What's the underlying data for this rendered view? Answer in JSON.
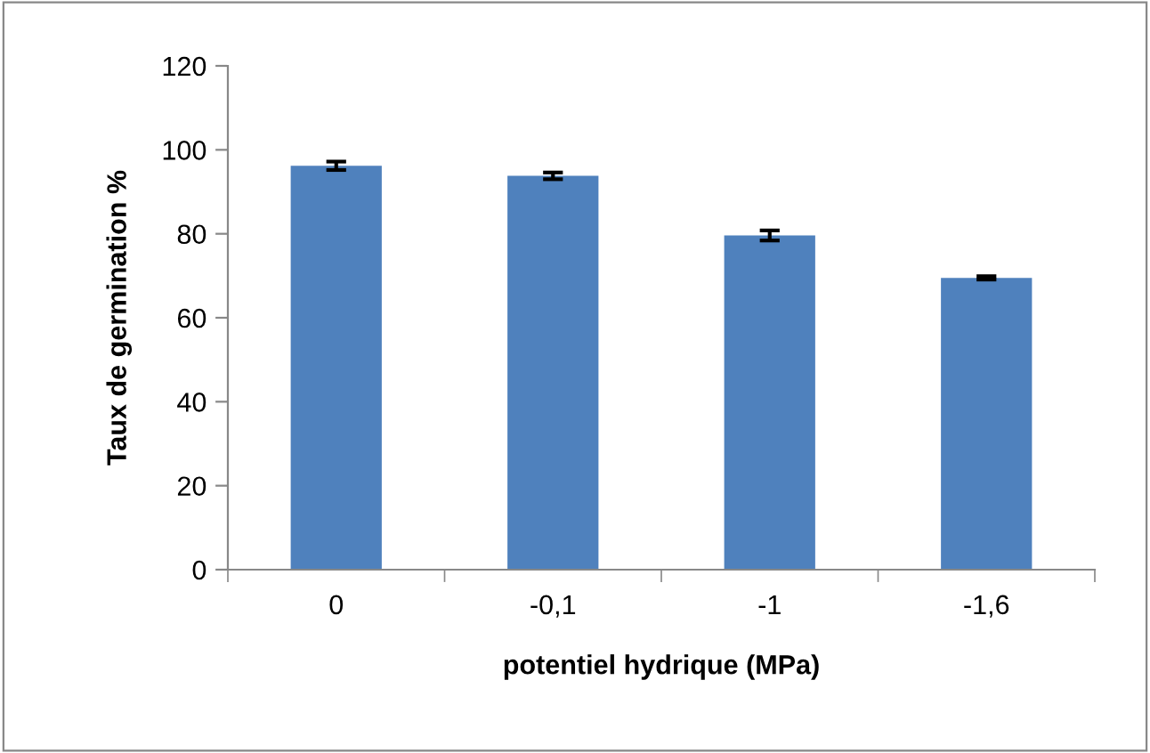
{
  "chart_data": {
    "type": "bar",
    "xlabel": "potentiel hydrique (MPa)",
    "ylabel": "Taux de germination %",
    "categories": [
      "0",
      "-0,1",
      "-1",
      "-1,6"
    ],
    "values": [
      96.2,
      93.8,
      79.6,
      69.5
    ],
    "errors": [
      1.0,
      0.8,
      1.2,
      0.4
    ],
    "color": "#4f81bd",
    "ylim": [
      0,
      120
    ],
    "yticks": [
      0,
      20,
      40,
      60,
      80,
      100,
      120
    ],
    "grid": false,
    "legend": false
  }
}
